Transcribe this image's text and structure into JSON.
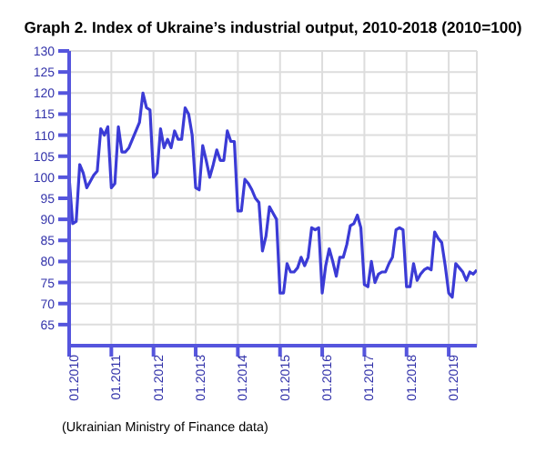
{
  "chart_data": {
    "type": "line",
    "title": "Graph 2. Index of Ukraine’s industrial output, 2010-2018 (2010=100)",
    "annotations": [
      "(Ukrainian Ministry of Finance data)"
    ],
    "x": [
      "2010-01",
      "2010-02",
      "2010-03",
      "2010-04",
      "2010-05",
      "2010-06",
      "2010-07",
      "2010-08",
      "2010-09",
      "2010-10",
      "2010-11",
      "2010-12",
      "2011-01",
      "2011-02",
      "2011-03",
      "2011-04",
      "2011-05",
      "2011-06",
      "2011-07",
      "2011-08",
      "2011-09",
      "2011-10",
      "2011-11",
      "2011-12",
      "2012-01",
      "2012-02",
      "2012-03",
      "2012-04",
      "2012-05",
      "2012-06",
      "2012-07",
      "2012-08",
      "2012-09",
      "2012-10",
      "2012-11",
      "2012-12",
      "2013-01",
      "2013-02",
      "2013-03",
      "2013-04",
      "2013-05",
      "2013-06",
      "2013-07",
      "2013-08",
      "2013-09",
      "2013-10",
      "2013-11",
      "2013-12",
      "2014-01",
      "2014-02",
      "2014-03",
      "2014-04",
      "2014-05",
      "2014-06",
      "2014-07",
      "2014-08",
      "2014-09",
      "2014-10",
      "2014-11",
      "2014-12",
      "2015-01",
      "2015-02",
      "2015-03",
      "2015-04",
      "2015-05",
      "2015-06",
      "2015-07",
      "2015-08",
      "2015-09",
      "2015-10",
      "2015-11",
      "2015-12",
      "2016-01",
      "2016-02",
      "2016-03",
      "2016-04",
      "2016-05",
      "2016-06",
      "2016-07",
      "2016-08",
      "2016-09",
      "2016-10",
      "2016-11",
      "2016-12",
      "2017-01",
      "2017-02",
      "2017-03",
      "2017-04",
      "2017-05",
      "2017-06",
      "2017-07",
      "2017-08",
      "2017-09",
      "2017-10",
      "2017-11",
      "2017-12",
      "2018-01",
      "2018-02",
      "2018-03",
      "2018-04",
      "2018-05",
      "2018-06",
      "2018-07",
      "2018-08",
      "2018-09",
      "2018-10",
      "2018-11",
      "2018-12",
      "2019-01",
      "2019-02",
      "2019-03",
      "2019-04",
      "2019-05",
      "2019-06",
      "2019-07",
      "2019-08",
      "2019-09"
    ],
    "series": [
      {
        "color": "#3b3bd6",
        "values": [
          100,
          89,
          89.5,
          103,
          101,
          97.5,
          99,
          100.5,
          101.5,
          111.5,
          110,
          112,
          97.5,
          98.5,
          112,
          106,
          106,
          107,
          109,
          111,
          113,
          120,
          116.5,
          116,
          100,
          101,
          111.5,
          107,
          109,
          107,
          111,
          109,
          109,
          116.5,
          115,
          110,
          97.5,
          97,
          107.5,
          104,
          100,
          103,
          106.5,
          104,
          104,
          111,
          108.5,
          108.5,
          92,
          92,
          99.5,
          98.5,
          97,
          95,
          94,
          82.5,
          86,
          93,
          91.5,
          90,
          72.5,
          72.5,
          79.5,
          77.5,
          77.5,
          78.5,
          81,
          79,
          81,
          88,
          87.5,
          88,
          72.5,
          79,
          83,
          80,
          76.5,
          81,
          81,
          84,
          88.5,
          89,
          91,
          88,
          74.5,
          74,
          80,
          75,
          77,
          77.5,
          77.5,
          79.5,
          81,
          87.5,
          88,
          87.5,
          74,
          74,
          79.5,
          75.5,
          77,
          78,
          78.5,
          78,
          87,
          85.5,
          84.5,
          79,
          72.5,
          71.5,
          79.5,
          78.5,
          77.5,
          75.5,
          77.5,
          77,
          78
        ]
      }
    ],
    "xlim": [
      "2010-01",
      "2019-09"
    ],
    "xticks": [
      {
        "value": "2010-01",
        "label": "01.2010"
      },
      {
        "value": "2011-01",
        "label": "01.2011"
      },
      {
        "value": "2012-01",
        "label": "01.2012"
      },
      {
        "value": "2013-01",
        "label": "01.2013"
      },
      {
        "value": "2014-01",
        "label": "01.2014"
      },
      {
        "value": "2015-01",
        "label": "01.2015"
      },
      {
        "value": "2016-01",
        "label": "01.2016"
      },
      {
        "value": "2017-01",
        "label": "01.2017"
      },
      {
        "value": "2018-01",
        "label": "01.2018"
      },
      {
        "value": "2019-01",
        "label": "01.2019"
      }
    ],
    "ylim": [
      60,
      130
    ],
    "yticks": [
      65,
      70,
      75,
      80,
      85,
      90,
      95,
      100,
      105,
      110,
      115,
      120,
      125,
      130
    ],
    "grid": true,
    "marker": "none",
    "line_style": "solid"
  }
}
